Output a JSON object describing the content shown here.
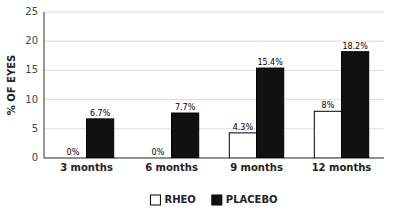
{
  "chart_data": {
    "type": "bar",
    "categories": [
      "3 months",
      "6 months",
      "9 months",
      "12 months"
    ],
    "series": [
      {
        "name": "RHEO",
        "color": "#ffffff",
        "values": [
          0.0,
          0.0,
          4.3,
          8.0
        ],
        "value_labels": [
          "0%",
          "0%",
          "4.3%",
          "8%"
        ]
      },
      {
        "name": "PLACEBO",
        "color": "#111111",
        "values": [
          6.7,
          7.7,
          15.4,
          18.2
        ],
        "value_labels": [
          "6.7%",
          "7.7%",
          "15.4%",
          "18.2%"
        ]
      }
    ],
    "ylabel": "% OF EYES",
    "ylim": [
      0,
      25
    ],
    "yticks": [
      0,
      5,
      10,
      15,
      20,
      25
    ],
    "grid": true,
    "legend": "bottom",
    "data_labels": true
  }
}
